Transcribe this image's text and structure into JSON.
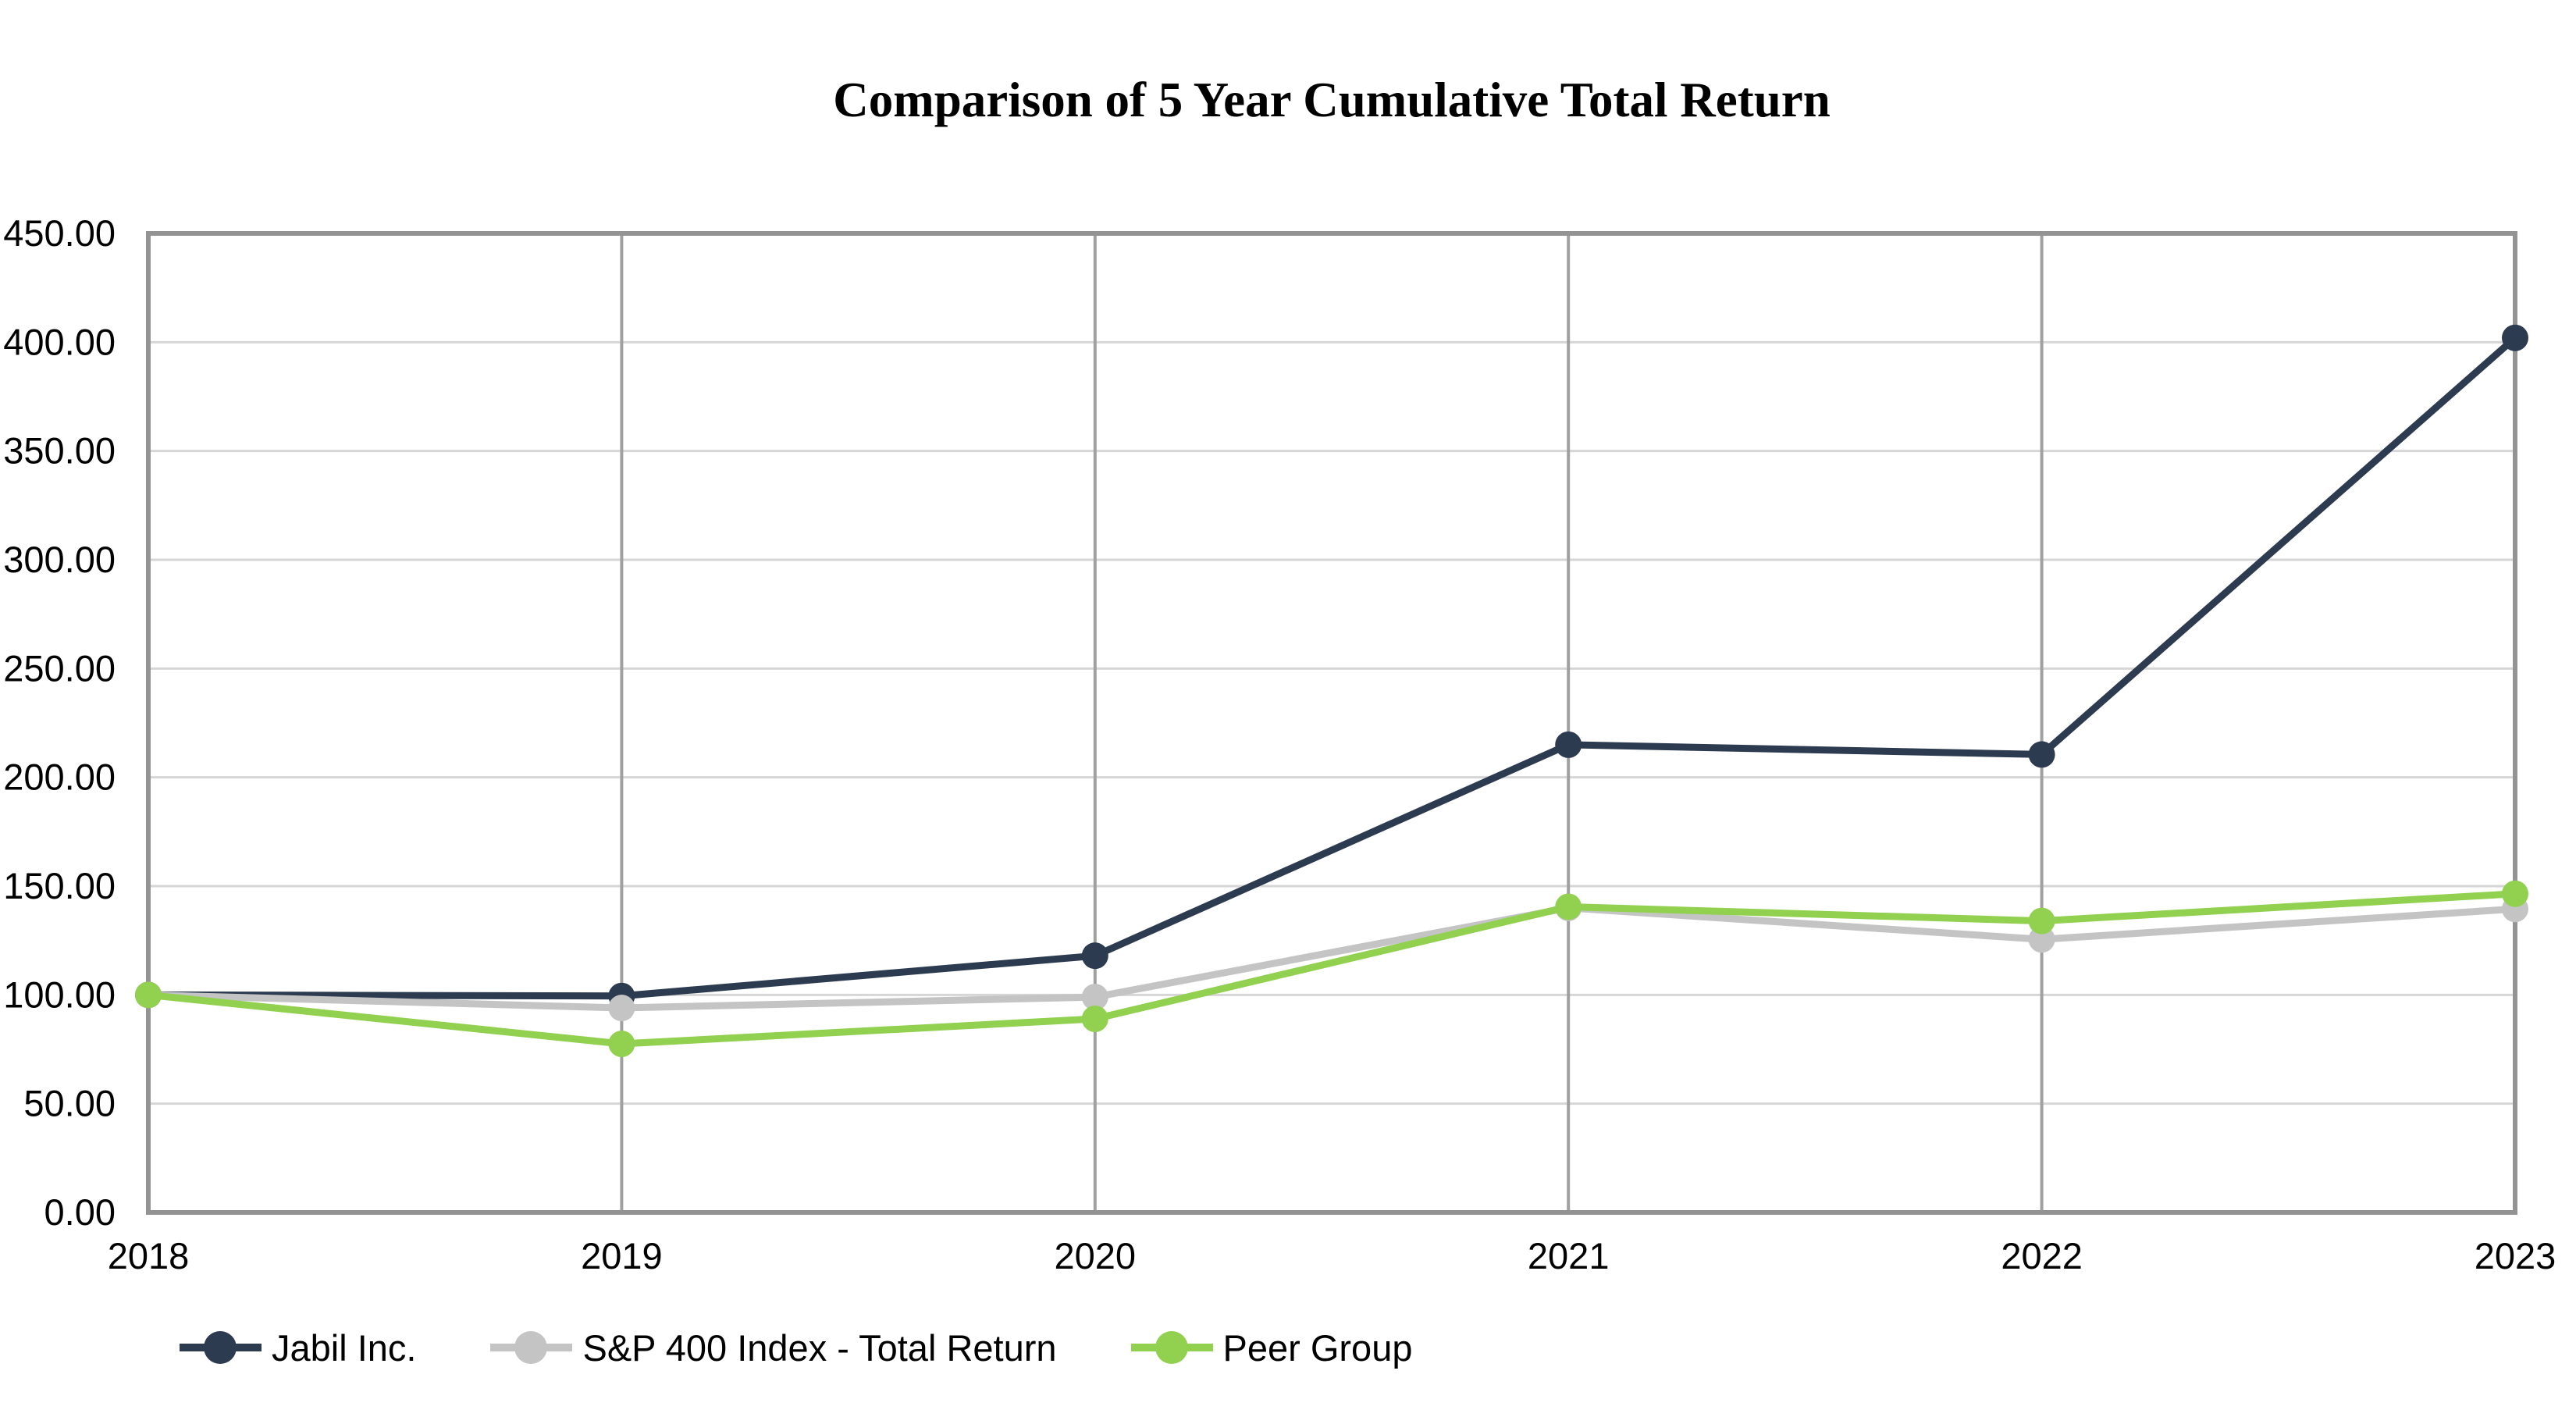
{
  "title": "Comparison of 5 Year Cumulative Total Return",
  "chart_data": {
    "type": "line",
    "title": "Comparison of 5 Year Cumulative Total Return",
    "categories": [
      "2018",
      "2019",
      "2020",
      "2021",
      "2022",
      "2023"
    ],
    "series": [
      {
        "name": "Jabil Inc.",
        "color": "#2D3B50",
        "values": [
          100.0,
          99.5,
          118.0,
          215.0,
          210.5,
          402.0
        ]
      },
      {
        "name": "S&P 400 Index - Total Return",
        "color": "#C4C4C4",
        "values": [
          100.0,
          94.0,
          99.0,
          140.0,
          125.5,
          139.5
        ]
      },
      {
        "name": "Peer Group",
        "color": "#92D050",
        "values": [
          100.0,
          77.5,
          89.0,
          140.5,
          134.0,
          146.5
        ]
      }
    ],
    "y_ticks": [
      "0.00",
      "50.00",
      "100.00",
      "150.00",
      "200.00",
      "250.00",
      "300.00",
      "350.00",
      "400.00",
      "450.00"
    ],
    "ylim": [
      0,
      450
    ],
    "y_step": 50,
    "xlabel": "",
    "ylabel": "",
    "grid": true,
    "legend_position": "bottom-left",
    "style": {
      "hgrid_color": "#D6D6D6",
      "vgrid_color": "#A0A0A0",
      "border_color": "#939393",
      "text_color": "#000000",
      "background": "#FFFFFF"
    }
  }
}
